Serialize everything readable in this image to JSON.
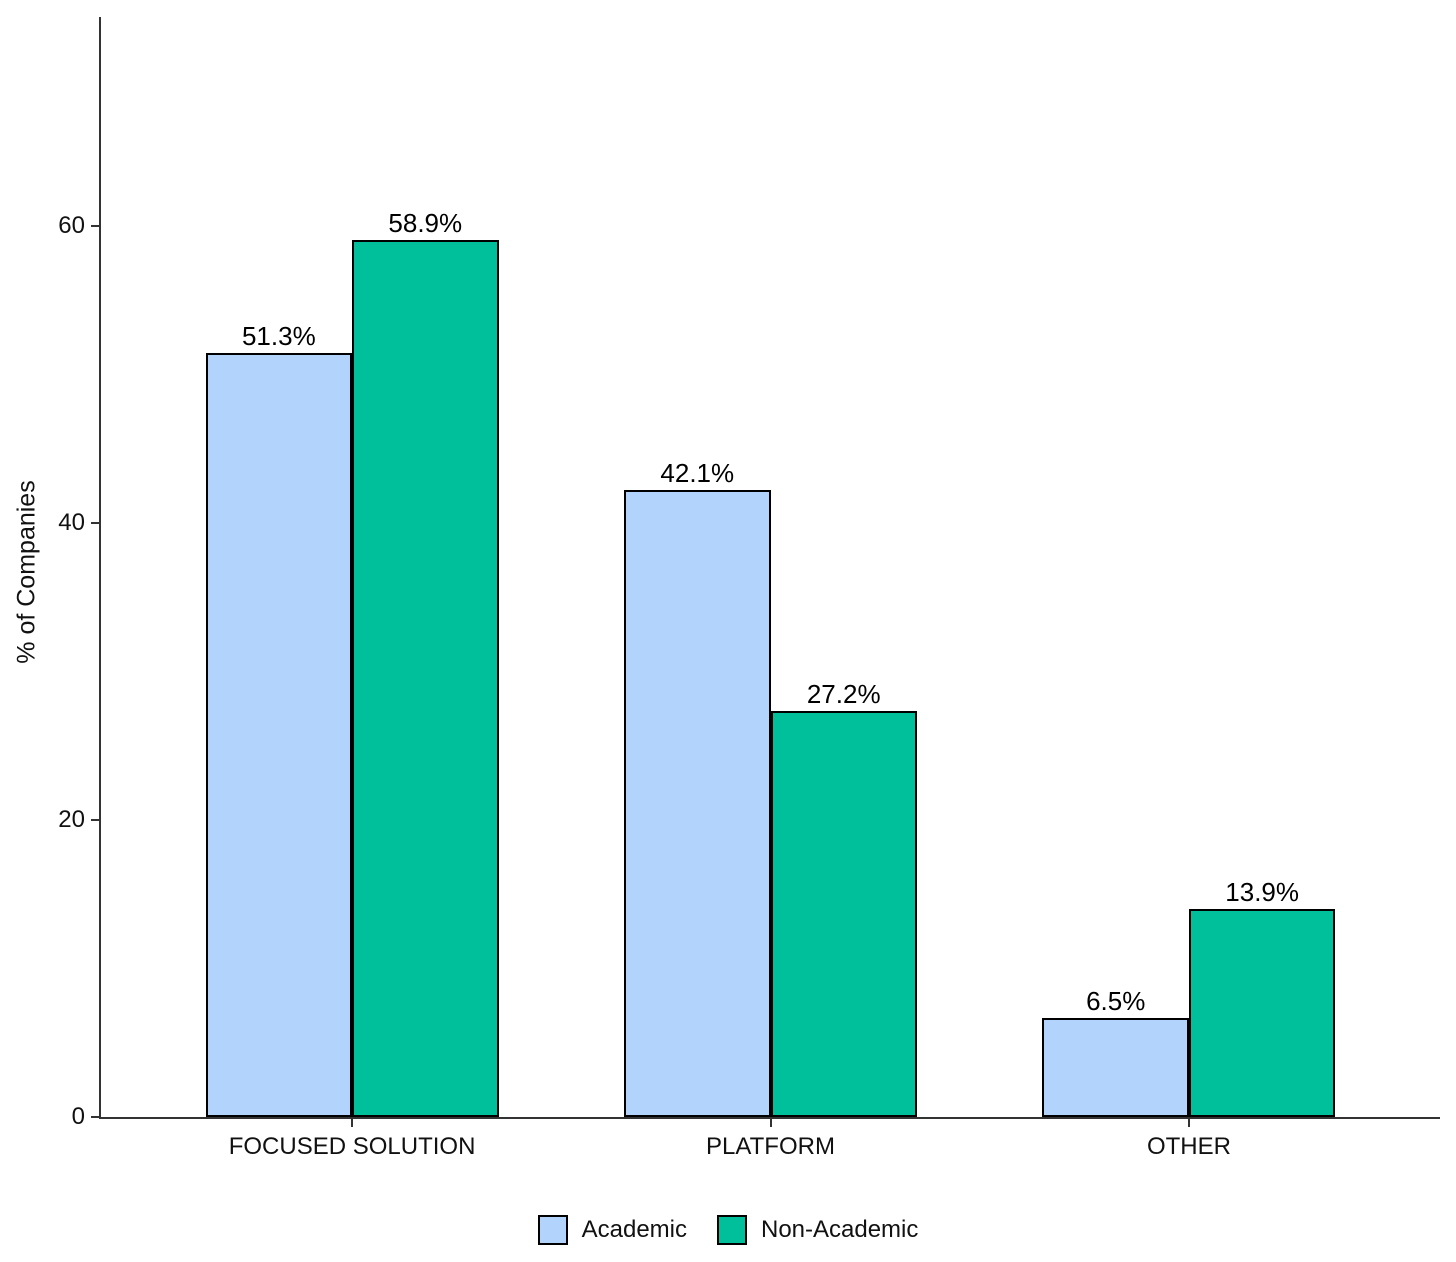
{
  "chart_data": {
    "type": "bar",
    "title": "",
    "xlabel": "",
    "ylabel": "% of Companies",
    "categories": [
      "FOCUSED SOLUTION",
      "PLATFORM",
      "OTHER"
    ],
    "series": [
      {
        "name": "Academic",
        "color": "#B1D3FC",
        "values": [
          51.3,
          42.1,
          6.5
        ],
        "value_labels": [
          "51.3%",
          "42.1%",
          "6.5%"
        ]
      },
      {
        "name": "Non-Academic",
        "color": "#00C09B",
        "values": [
          58.9,
          27.2,
          13.9
        ],
        "value_labels": [
          "58.9%",
          "27.2%",
          "13.9%"
        ]
      }
    ],
    "yticks": [
      "0",
      "20",
      "40",
      "60"
    ],
    "ytick_values": [
      0,
      20,
      40,
      60
    ],
    "ylim": [
      0,
      74
    ],
    "grid": false,
    "legend_position": "bottom",
    "colors": {
      "bar_border": "#000000",
      "axis": "#333333",
      "text": "#111111"
    }
  }
}
